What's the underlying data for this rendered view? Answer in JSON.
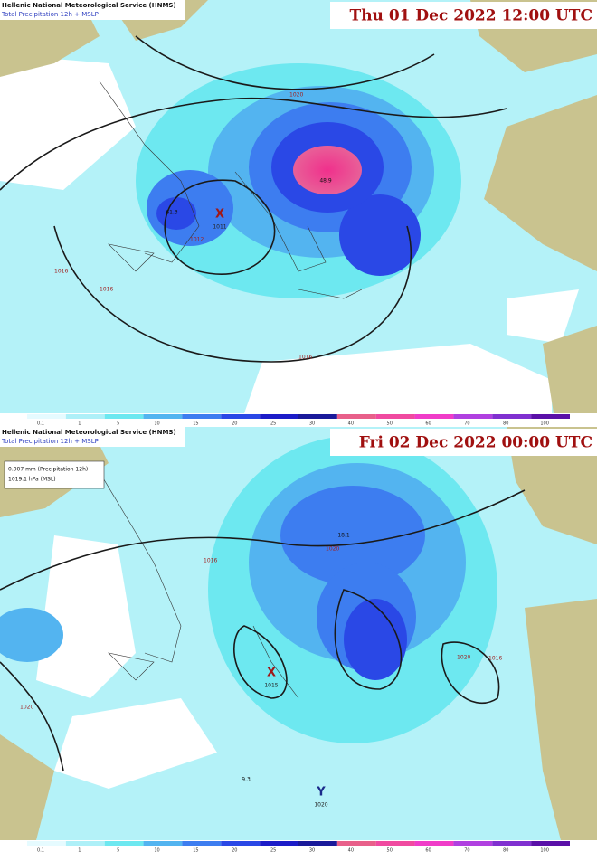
{
  "panels": [
    {
      "header": {
        "agency": "Hellenic National Meteorological Service (HNMS)",
        "product": "Total Precipitation 12h + MSLP",
        "datetime": "Thu 01 Dec 2022 12:00 UTC"
      },
      "markers": [
        {
          "symbol": "X",
          "pressure": "1011"
        }
      ],
      "isobar_labels": [
        "1016",
        "1012",
        "1016",
        "1020",
        "1016"
      ],
      "value_labels": [
        "61.3",
        "48.9"
      ]
    },
    {
      "header": {
        "agency": "Hellenic National Meteorological Service (HNMS)",
        "product": "Total Precipitation 12h + MSLP",
        "datetime": "Fri 02 Dec 2022 00:00 UTC"
      },
      "info": [
        "0.007 mm (Precipitation 12h)",
        "1019.1 hPa (MSL)"
      ],
      "markers": [
        {
          "symbol": "X",
          "pressure": "1015"
        },
        {
          "symbol": "Y",
          "pressure": "1020"
        }
      ],
      "isobar_labels": [
        "1016",
        "1020",
        "1016",
        "1020",
        "1020"
      ],
      "value_labels": [
        "18.1",
        "9.3"
      ]
    }
  ],
  "colorbar": [
    "0.1",
    "1",
    "5",
    "10",
    "15",
    "20",
    "25",
    "30",
    "40",
    "50",
    "60",
    "70",
    "80",
    "100"
  ]
}
